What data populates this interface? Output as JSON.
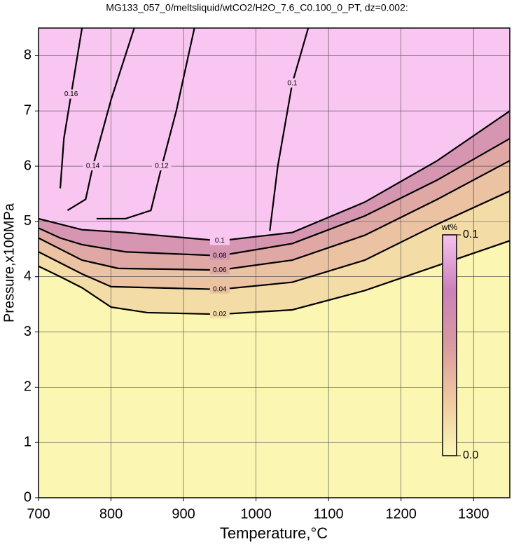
{
  "chart_data": {
    "type": "contour",
    "title": "MG133_057_0/meltsliquid/wtCO2/H2O_7.6_C0.100_0_PT, dz=0.002:",
    "x_label": "Temperature,°C",
    "y_label": "Pressure,x100MPa",
    "xlim": [
      700,
      1350
    ],
    "ylim": [
      0,
      8.5
    ],
    "xticks": [
      700,
      800,
      900,
      1000,
      1100,
      1200,
      1300
    ],
    "yticks": [
      0,
      1,
      2,
      3,
      4,
      5,
      6,
      7,
      8
    ],
    "grid": true,
    "background": "#fbf6b2",
    "colorbar": {
      "label": "wt%",
      "ticks": [
        {
          "value": 0,
          "label": "0.0"
        },
        0.1
      ],
      "colors": [
        "#fbf8b8",
        "#f0c9a0",
        "#d99aa0",
        "#cc80b8",
        "#f6c2f0"
      ]
    },
    "contours": [
      {
        "level": 0.02,
        "fill": "#f3dca6",
        "x": [
          700,
          730,
          760,
          800,
          850,
          950,
          1050,
          1150,
          1250,
          1350
        ],
        "y": [
          4.19,
          4.0,
          3.8,
          3.45,
          3.35,
          3.32,
          3.4,
          3.75,
          4.2,
          4.65
        ]
      },
      {
        "level": 0.04,
        "fill": "#ebc2a2",
        "x": [
          700,
          730,
          760,
          800,
          950,
          1050,
          1150,
          1250,
          1350
        ],
        "y": [
          4.45,
          4.25,
          4.05,
          3.82,
          3.77,
          3.9,
          4.3,
          4.95,
          5.55
        ]
      },
      {
        "level": 0.06,
        "fill": "#e0a8a4",
        "x": [
          700,
          730,
          760,
          810,
          950,
          1050,
          1150,
          1250,
          1350
        ],
        "y": [
          4.7,
          4.5,
          4.3,
          4.15,
          4.12,
          4.3,
          4.75,
          5.4,
          6.1
        ]
      },
      {
        "level": 0.08,
        "fill": "#d696b2",
        "x": [
          700,
          730,
          760,
          820,
          950,
          1050,
          1150,
          1250,
          1350
        ],
        "y": [
          4.88,
          4.7,
          4.58,
          4.45,
          4.38,
          4.6,
          5.1,
          5.75,
          6.5
        ]
      },
      {
        "level": 0.1,
        "fill": "#f8c6f0",
        "x": [
          700,
          730,
          760,
          820,
          950,
          1050,
          1150,
          1250,
          1350
        ],
        "y": [
          5.05,
          4.95,
          4.85,
          4.8,
          4.65,
          4.8,
          5.35,
          6.1,
          7.0
        ]
      },
      {
        "level": 0.1,
        "x": [
          1019,
          1030,
          1050,
          1072
        ],
        "y": [
          4.83,
          6.0,
          7.5,
          8.5
        ]
      },
      {
        "level": 0.12,
        "x": [
          780,
          820,
          855,
          870,
          890,
          915
        ],
        "y": [
          5.05,
          5.05,
          5.2,
          6.0,
          7.0,
          8.5
        ]
      },
      {
        "level": 0.14,
        "x": [
          740,
          765,
          775,
          800,
          832
        ],
        "y": [
          5.2,
          5.4,
          6.0,
          7.2,
          8.5
        ]
      },
      {
        "level": 0.16,
        "x": [
          730,
          735,
          745,
          760
        ],
        "y": [
          5.6,
          6.5,
          7.3,
          8.5
        ]
      }
    ]
  }
}
